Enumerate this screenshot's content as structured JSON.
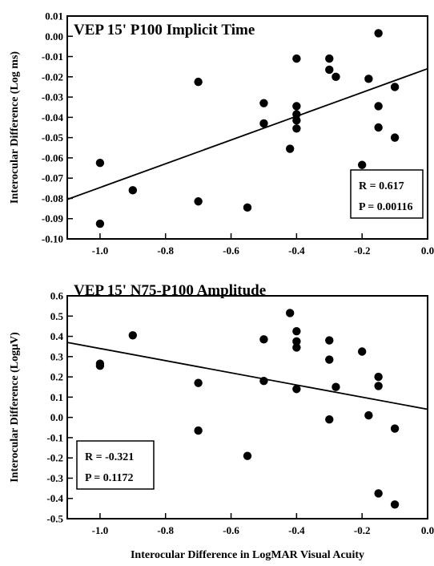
{
  "chart_data": [
    {
      "type": "scatter",
      "title": "VEP 15' P100 Implicit Time",
      "ylabel": "Interocular Difference (Log ms)",
      "xlabel": "",
      "xlim": [
        -1.1,
        0.0
      ],
      "ylim": [
        -0.1,
        0.01
      ],
      "xticks": [
        "-1.0",
        "-0.8",
        "-0.6",
        "-0.4",
        "-0.2",
        "0.0"
      ],
      "yticks": [
        "0.01",
        "0.00",
        "-0.01",
        "-0.02",
        "-0.03",
        "-0.04",
        "-0.05",
        "-0.06",
        "-0.07",
        "-0.08",
        "-0.09",
        "-0.10"
      ],
      "points": [
        {
          "x": -1.0,
          "y": -0.0625
        },
        {
          "x": -1.0,
          "y": -0.0925
        },
        {
          "x": -0.9,
          "y": -0.076
        },
        {
          "x": -0.7,
          "y": -0.0225
        },
        {
          "x": -0.7,
          "y": -0.0815
        },
        {
          "x": -0.55,
          "y": -0.0845
        },
        {
          "x": -0.5,
          "y": -0.033
        },
        {
          "x": -0.5,
          "y": -0.043
        },
        {
          "x": -0.42,
          "y": -0.0555
        },
        {
          "x": -0.4,
          "y": -0.011
        },
        {
          "x": -0.4,
          "y": -0.0345
        },
        {
          "x": -0.4,
          "y": -0.0385
        },
        {
          "x": -0.4,
          "y": -0.0415
        },
        {
          "x": -0.4,
          "y": -0.0455
        },
        {
          "x": -0.3,
          "y": -0.011
        },
        {
          "x": -0.3,
          "y": -0.0165
        },
        {
          "x": -0.28,
          "y": -0.02
        },
        {
          "x": -0.2,
          "y": -0.0635
        },
        {
          "x": -0.18,
          "y": -0.021
        },
        {
          "x": -0.15,
          "y": 0.0015
        },
        {
          "x": -0.15,
          "y": -0.0345
        },
        {
          "x": -0.15,
          "y": -0.045
        },
        {
          "x": -0.1,
          "y": -0.025
        },
        {
          "x": -0.1,
          "y": -0.05
        }
      ],
      "fit_line": {
        "x": [
          -1.1,
          0.0
        ],
        "y": [
          -0.0805,
          -0.016
        ]
      },
      "stats": {
        "r_label": "R  = 0.617",
        "p_label": "P = 0.00116"
      },
      "stats_position": "bottom-right",
      "grid": false,
      "point_color": "#000000"
    },
    {
      "type": "scatter",
      "title": "VEP 15' N75-P100 Amplitude",
      "ylabel": "Interocular Difference (LogμV)",
      "xlabel": "Interocular Difference in LogMAR Visual Acuity",
      "xlim": [
        -1.1,
        0.0
      ],
      "ylim": [
        -0.5,
        0.6
      ],
      "xticks": [
        "-1.0",
        "-0.8",
        "-0.6",
        "-0.4",
        "-0.2",
        "0.0"
      ],
      "yticks": [
        "0.6",
        "0.5",
        "0.4",
        "0.3",
        "0.2",
        "0.1",
        "0.0",
        "-0.1",
        "-0.2",
        "-0.3",
        "-0.4",
        "-0.5"
      ],
      "points": [
        {
          "x": -1.0,
          "y": 0.265
        },
        {
          "x": -1.0,
          "y": 0.255
        },
        {
          "x": -0.9,
          "y": 0.405
        },
        {
          "x": -0.7,
          "y": 0.17
        },
        {
          "x": -0.7,
          "y": -0.065
        },
        {
          "x": -0.55,
          "y": -0.19
        },
        {
          "x": -0.5,
          "y": 0.385
        },
        {
          "x": -0.5,
          "y": 0.18
        },
        {
          "x": -0.42,
          "y": 0.515
        },
        {
          "x": -0.4,
          "y": 0.425
        },
        {
          "x": -0.4,
          "y": 0.375
        },
        {
          "x": -0.4,
          "y": 0.345
        },
        {
          "x": -0.4,
          "y": 0.14
        },
        {
          "x": -0.3,
          "y": 0.38
        },
        {
          "x": -0.3,
          "y": 0.285
        },
        {
          "x": -0.3,
          "y": -0.01
        },
        {
          "x": -0.28,
          "y": 0.15
        },
        {
          "x": -0.2,
          "y": 0.325
        },
        {
          "x": -0.18,
          "y": 0.01
        },
        {
          "x": -0.15,
          "y": 0.2
        },
        {
          "x": -0.15,
          "y": 0.155
        },
        {
          "x": -0.15,
          "y": -0.375
        },
        {
          "x": -0.1,
          "y": -0.055
        },
        {
          "x": -0.1,
          "y": -0.43
        }
      ],
      "fit_line": {
        "x": [
          -1.1,
          0.0
        ],
        "y": [
          0.37,
          0.04
        ]
      },
      "stats": {
        "r_label": "R  = -0.321",
        "p_label": "P = 0.1172"
      },
      "stats_position": "bottom-left",
      "grid": false,
      "point_color": "#000000"
    }
  ]
}
